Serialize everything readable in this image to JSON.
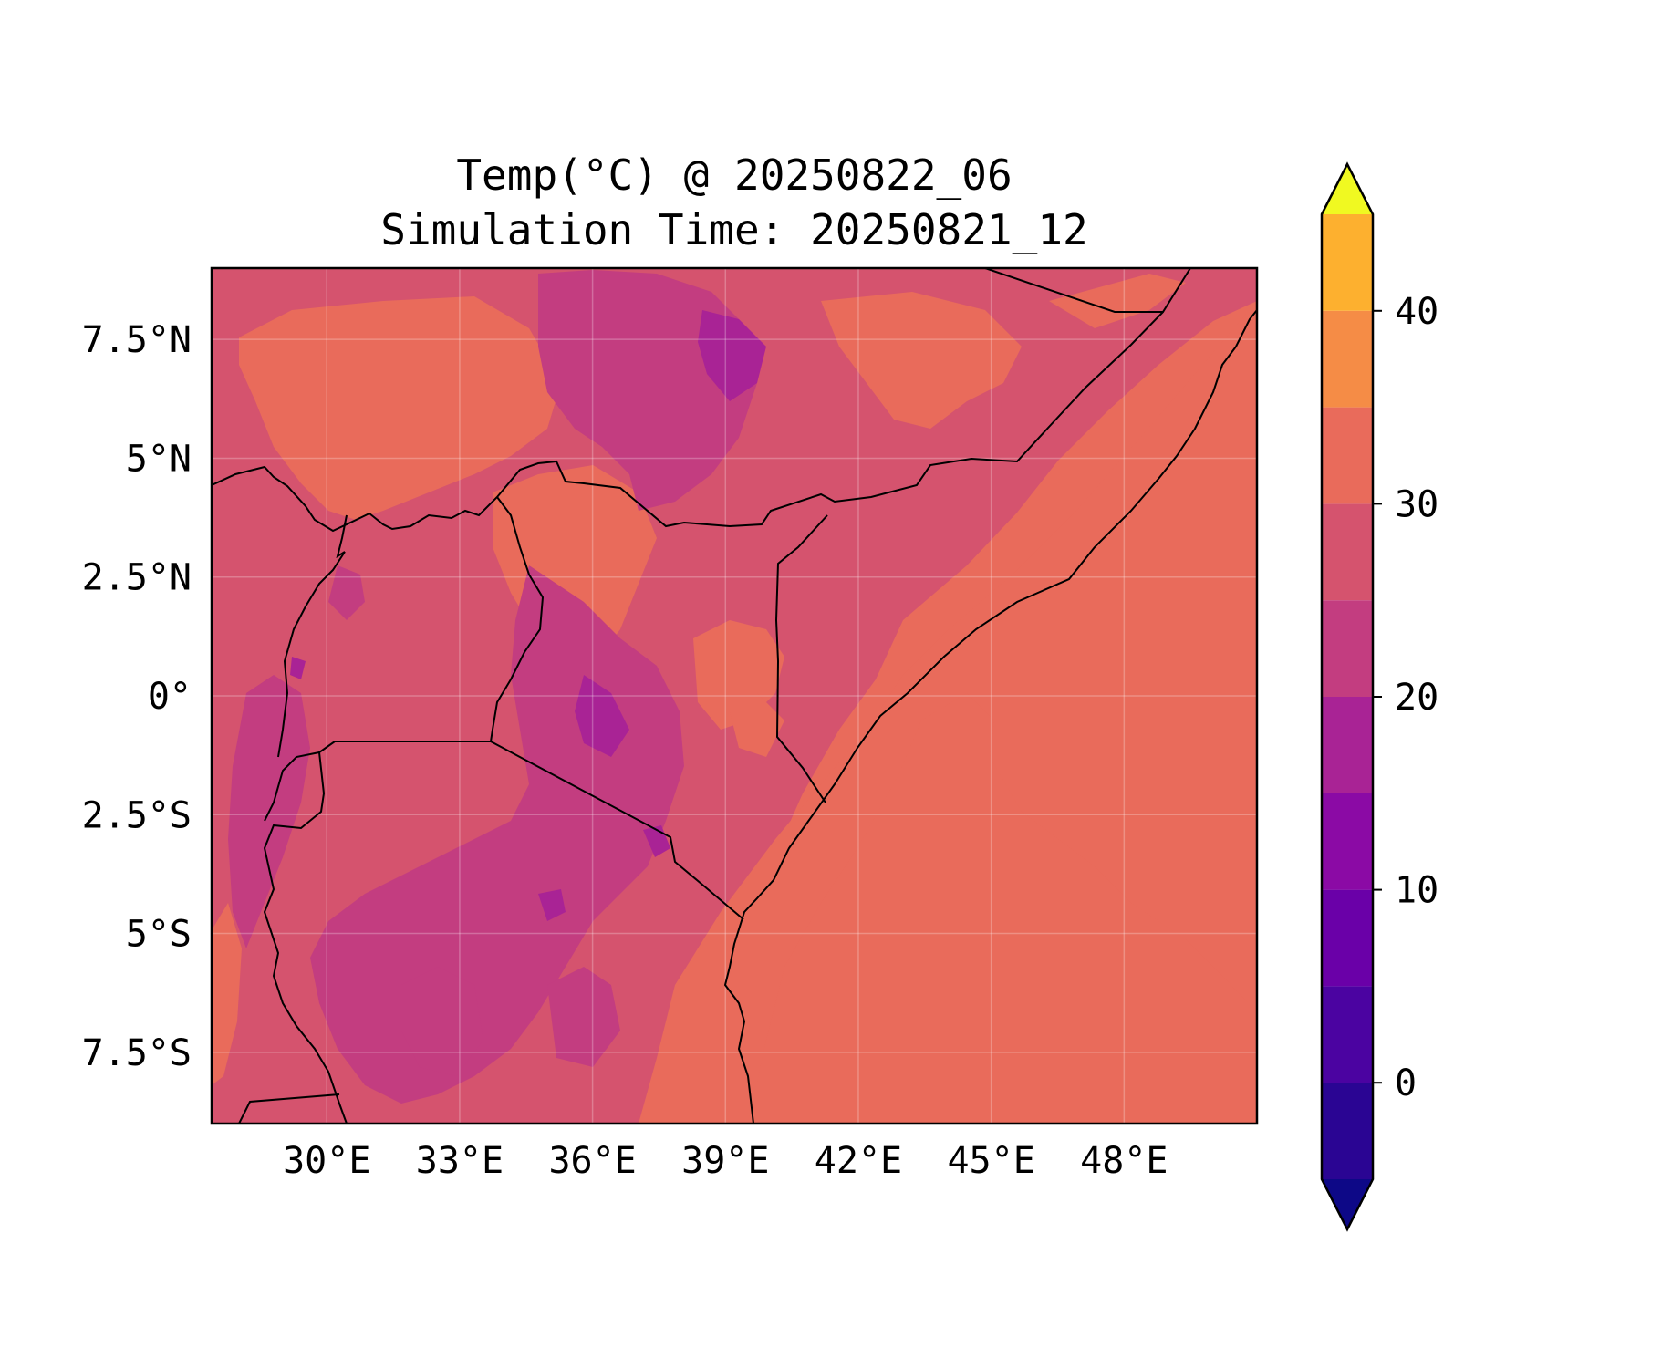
{
  "title": [
    "Temp(°C) @ 20250822_06",
    "Simulation Time: 20250821_12"
  ],
  "map": {
    "lon_range": [
      27.4,
      51.0
    ],
    "lat_range": [
      -9.0,
      9.0
    ],
    "x_ticks": [
      {
        "value": 30,
        "label": "30°E"
      },
      {
        "value": 33,
        "label": "33°E"
      },
      {
        "value": 36,
        "label": "36°E"
      },
      {
        "value": 39,
        "label": "39°E"
      },
      {
        "value": 42,
        "label": "42°E"
      },
      {
        "value": 45,
        "label": "45°E"
      },
      {
        "value": 48,
        "label": "48°E"
      }
    ],
    "y_ticks": [
      {
        "value": 7.5,
        "label": "7.5°N"
      },
      {
        "value": 5,
        "label": "5°N"
      },
      {
        "value": 2.5,
        "label": "2.5°N"
      },
      {
        "value": 0,
        "label": "0°"
      },
      {
        "value": -2.5,
        "label": "2.5°S"
      },
      {
        "value": -5,
        "label": "5°S"
      },
      {
        "value": -7.5,
        "label": "7.5°S"
      }
    ],
    "gridlines": true,
    "background_color": "#d5536e"
  },
  "colorbar": {
    "levels": [
      -5,
      0,
      5,
      10,
      15,
      20,
      25,
      30,
      35,
      40,
      45
    ],
    "colors": [
      "#2a0593",
      "#4b03a1",
      "#6a00a8",
      "#8b0aa5",
      "#a92395",
      "#c33d80",
      "#d5536e",
      "#e96b5b",
      "#f58c46",
      "#fdb02f",
      "#f6d92a"
    ],
    "extend_low_color": "#0d0887",
    "extend_high_color": "#f0f921",
    "tick_values": [
      0,
      10,
      20,
      30,
      40
    ],
    "tick_labels": [
      "0",
      "10",
      "20",
      "30",
      "40"
    ]
  }
}
